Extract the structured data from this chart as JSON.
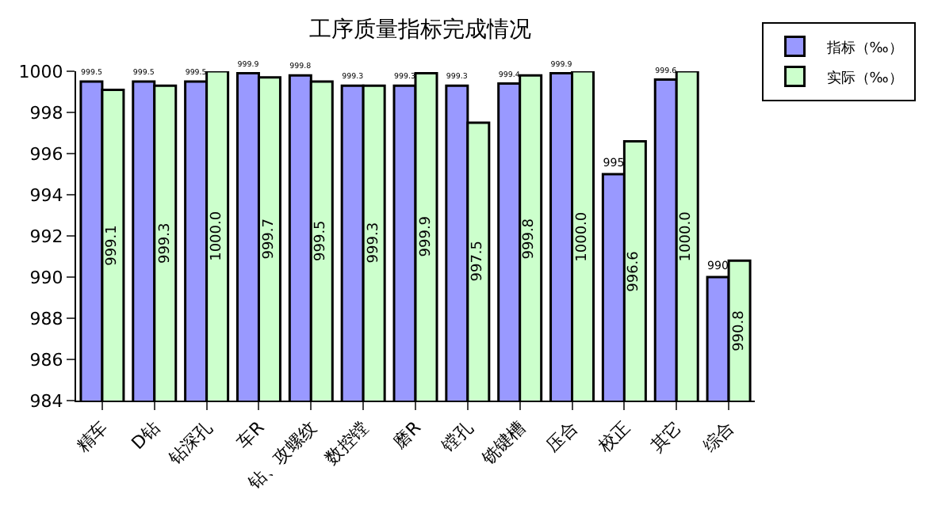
{
  "chart_data": {
    "type": "bar",
    "title": "工序质量指标完成情况",
    "categories": [
      "精车",
      "D钻",
      "钻深孔",
      "车R",
      "钻、攻螺纹",
      "数控镗",
      "磨R",
      "镗孔",
      "铣键槽",
      "压合",
      "校正",
      "其它",
      "综合"
    ],
    "series": [
      {
        "name": "指标（‰）",
        "color": "#9999ff",
        "values": [
          999.5,
          999.5,
          999.5,
          999.9,
          999.8,
          999.3,
          999.3,
          999.3,
          999.4,
          999.9,
          995,
          999.6,
          990
        ],
        "value_labels": [
          "999.5",
          "999.5",
          "999.5",
          "999.9",
          "999.8",
          "999.3",
          "999.3",
          "999.3",
          "999.4",
          "999.9",
          "995",
          "999.6",
          "990"
        ]
      },
      {
        "name": "实际（‰）",
        "color": "#ccffcc",
        "values": [
          999.1,
          999.3,
          1000.0,
          999.7,
          999.5,
          999.3,
          999.9,
          997.5,
          999.8,
          1000.0,
          996.6,
          1000.0,
          990.8
        ],
        "value_labels": [
          "999.1",
          "999.3",
          "1000.0",
          "999.7",
          "999.5",
          "999.3",
          "999.9",
          "997.5",
          "999.8",
          "1000.0",
          "996.6",
          "1000.0",
          "990.8"
        ]
      }
    ],
    "ylim": [
      984,
      1000
    ],
    "yticks": [
      984,
      986,
      988,
      990,
      992,
      994,
      996,
      998,
      1000
    ],
    "grid": false,
    "legend": "top right"
  }
}
